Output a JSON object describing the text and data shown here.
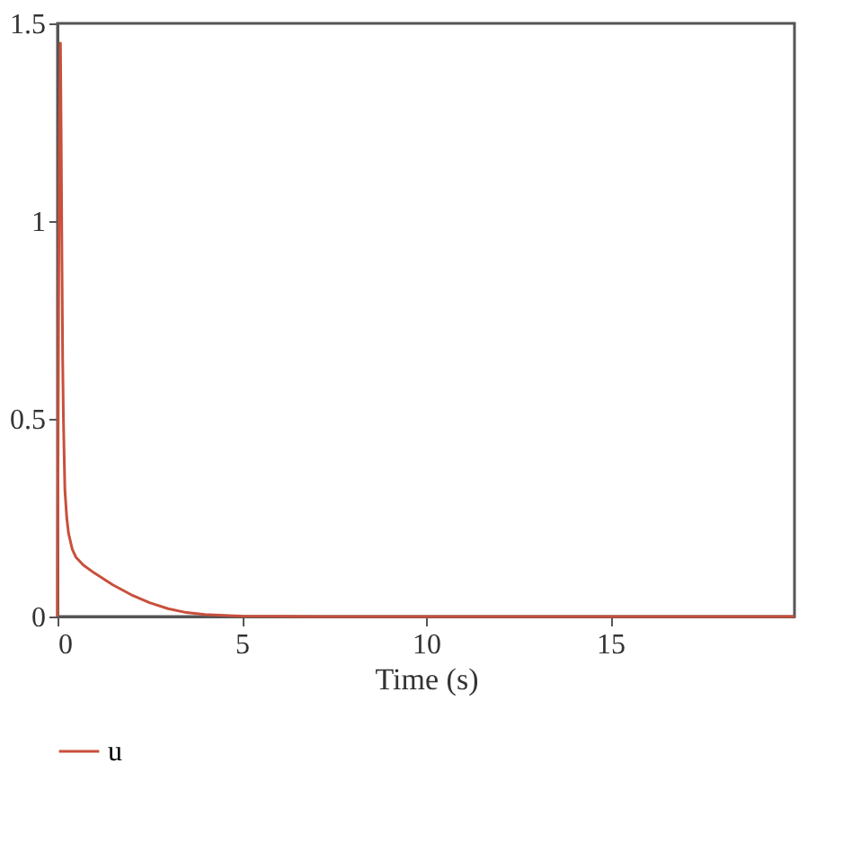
{
  "chart_data": {
    "type": "line",
    "xlabel": "Time (s)",
    "series": [
      {
        "name": "u",
        "color": "#c8503c",
        "x": [
          0,
          0.01,
          0.03,
          0.05,
          0.08,
          0.1,
          0.12,
          0.14,
          0.16,
          0.2,
          0.25,
          0.3,
          0.4,
          0.5,
          0.7,
          1,
          1.5,
          2,
          2.5,
          3,
          3.5,
          4,
          5,
          7,
          10,
          15,
          20
        ],
        "values": [
          0,
          0.3,
          0.8,
          1.2,
          1.45,
          1.2,
          0.9,
          0.65,
          0.5,
          0.32,
          0.25,
          0.21,
          0.17,
          0.15,
          0.13,
          0.11,
          0.08,
          0.055,
          0.035,
          0.02,
          0.01,
          0.005,
          0.001,
          0,
          0,
          0,
          0
        ]
      }
    ],
    "xlim": [
      0,
      20
    ],
    "xticks": [
      0,
      5,
      10,
      15
    ],
    "ylim": [
      0,
      1.5
    ],
    "yticks": [
      0,
      0.5,
      1,
      1.5
    ],
    "grid": false,
    "legend": "bottom left",
    "marker": "none",
    "line_style": "solid"
  }
}
